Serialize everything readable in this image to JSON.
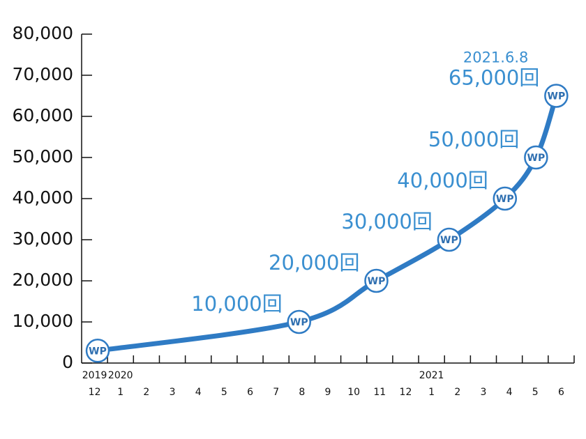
{
  "chart_data": {
    "type": "line",
    "categories": [
      "12",
      "1",
      "2",
      "3",
      "4",
      "5",
      "6",
      "7",
      "8",
      "9",
      "10",
      "11",
      "12",
      "1",
      "2",
      "3",
      "4",
      "5",
      "6"
    ],
    "years": [
      "2019",
      "2020",
      null,
      null,
      null,
      null,
      null,
      null,
      null,
      null,
      null,
      null,
      null,
      "2021",
      null,
      null,
      null,
      null,
      null
    ],
    "xlim": [
      0,
      19
    ],
    "ylim": [
      0,
      80000
    ],
    "yticks": [
      0,
      {
        "value": 10000,
        "label": "10,000"
      },
      {
        "value": 20000,
        "label": "20,000"
      },
      {
        "value": 30000,
        "label": "30,000"
      },
      {
        "value": 40000,
        "label": "40,000"
      },
      {
        "value": 50000,
        "label": "50,000"
      },
      {
        "value": 60000,
        "label": "60,000"
      },
      {
        "value": 70000,
        "label": "70,000"
      },
      {
        "value": 80000,
        "label": "80,000"
      }
    ],
    "marker_text": "WP",
    "annotation": "2021.6.8",
    "series": [
      {
        "color": "#2f7bc4",
        "x": [
          0.62,
          8.39,
          11.37,
          14.18,
          16.33,
          17.53,
          18.31
        ],
        "values": [
          3000,
          10000,
          20000,
          30000,
          40000,
          50000,
          65000
        ],
        "value_labels": [
          null,
          "10,000回",
          "20,000回",
          "30,000回",
          "40,000回",
          "50,000回",
          "65,000回"
        ]
      }
    ]
  }
}
